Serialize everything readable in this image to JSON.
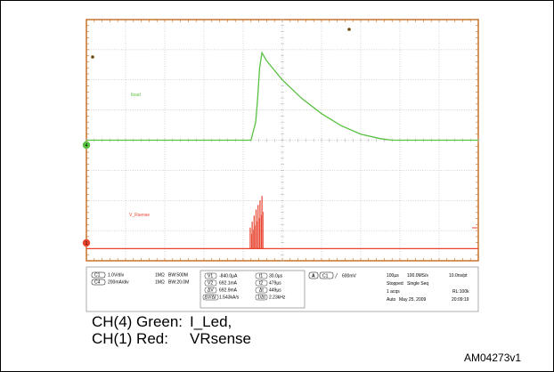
{
  "chart_data": {
    "type": "line",
    "title": "",
    "xlabel": "",
    "ylabel": "",
    "x_unit": "µs",
    "xlim": [
      0,
      1000
    ],
    "ylim_divisions": [
      -4,
      4
    ],
    "grid": true,
    "series": [
      {
        "name": "I_Led",
        "color": "#58c140",
        "points": [
          [
            0,
            0
          ],
          [
            420,
            0
          ],
          [
            432,
            0.6
          ],
          [
            437,
            1.4
          ],
          [
            442,
            2.4
          ],
          [
            448,
            2.9
          ],
          [
            460,
            2.63
          ],
          [
            500,
            2.0
          ],
          [
            550,
            1.38
          ],
          [
            600,
            0.88
          ],
          [
            650,
            0.48
          ],
          [
            700,
            0.2
          ],
          [
            750,
            0.05
          ],
          [
            780,
            0
          ],
          [
            1000,
            0
          ]
        ]
      },
      {
        "name": "V_Rsense",
        "color": "#e8432f",
        "points": [
          [
            0,
            -3.6
          ],
          [
            1000,
            -3.6
          ]
        ],
        "bursts": [
          {
            "x": 418,
            "height": 0.7
          },
          {
            "x": 423,
            "height": 0.9
          },
          {
            "x": 428,
            "height": 1.1
          },
          {
            "x": 433,
            "height": 1.3
          },
          {
            "x": 438,
            "height": 1.45
          },
          {
            "x": 443,
            "height": 1.6
          },
          {
            "x": 448,
            "height": 1.75
          }
        ]
      }
    ]
  },
  "scope": {
    "trace_labels": {
      "green": "Iload",
      "red": "V_Rsense"
    },
    "ch1": {
      "badge": "C1",
      "scale": "1.0V/div",
      "coupling": "1MΩ",
      "bw": "BW:500M"
    },
    "ch4": {
      "badge": "C4",
      "scale": "200mA/div",
      "coupling": "1MΩ",
      "bw": "BW:20.0M"
    },
    "cursors": {
      "v1_label": "V1",
      "v1": "-840.0µA",
      "v2_label": "V2",
      "v2": "692.1mA",
      "dv_label": "ΔV",
      "dv": "692.9mA",
      "dvdt_label": "ΔV/Δt",
      "dvdt": "1.543kA/s",
      "t1_label": "t1",
      "t1": "30.0µs",
      "t2_label": "t2",
      "t2": "479µs",
      "dt_label": "Δt",
      "dt": "449µs",
      "inv_dt_label": "1/Δt",
      "inv_dt": "2.23kHz"
    },
    "trigger": {
      "badge": "A",
      "source": "C1",
      "slope": "╱",
      "level": "600mV"
    },
    "timebase": {
      "time_div": "100µs",
      "sample_rate": "100.0MS/s",
      "pt_rate": "10.0ns/pt",
      "state": "Stopped",
      "mode": "Single Seq",
      "acqs": "1 acqs",
      "rl": "RL:100k",
      "auto": "Auto",
      "date": "May 25, 2009",
      "time": "20:09:19"
    },
    "markers": {
      "ch1_label": "1",
      "ch4_label": "4"
    }
  },
  "caption": {
    "line1_ch": "CH(4) Green:",
    "line1_sig": "I_Led,",
    "line2_ch": "CH(1) Red:",
    "line2_sig": "VRsense"
  },
  "figure_id": "AM04273v1",
  "colors": {
    "frame": "#c56a1c",
    "screen": "#ffffff",
    "grid": "#a8a8a8",
    "green": "#58c140",
    "red": "#e8432f"
  }
}
